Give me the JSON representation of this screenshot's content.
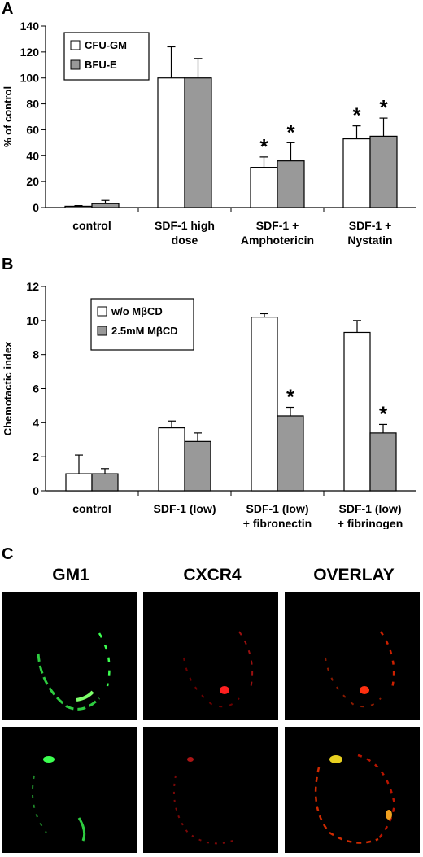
{
  "panels": {
    "a_letter": "A",
    "b_letter": "B",
    "c_letter": "C"
  },
  "chart_data": [
    {
      "type": "bar",
      "panel": "A",
      "ylabel": "% of control",
      "ylim": [
        0,
        140
      ],
      "yticks": [
        0,
        20,
        40,
        60,
        80,
        100,
        120,
        140
      ],
      "categories": [
        [
          "control"
        ],
        [
          "SDF-1 high",
          "dose"
        ],
        [
          "SDF-1 +",
          "Amphotericin"
        ],
        [
          "SDF-1 +",
          "Nystatin"
        ]
      ],
      "series": [
        {
          "name": "CFU-GM",
          "color": "#ffffff",
          "values": [
            1,
            100,
            31,
            53
          ],
          "errors": [
            0.5,
            24,
            8,
            10
          ]
        },
        {
          "name": "BFU-E",
          "color": "#999999",
          "values": [
            3,
            100,
            36,
            55
          ],
          "errors": [
            2.5,
            15,
            14,
            14
          ]
        }
      ],
      "significance": [
        [
          false,
          false,
          true,
          true
        ],
        [
          false,
          false,
          true,
          true
        ]
      ],
      "significance_mark": "*",
      "legend_position": "top-left",
      "grid": false
    },
    {
      "type": "bar",
      "panel": "B",
      "ylabel": "Chemotactic index",
      "ylim": [
        0,
        12
      ],
      "yticks": [
        0,
        2,
        4,
        6,
        8,
        10,
        12
      ],
      "categories": [
        [
          "control"
        ],
        [
          "SDF-1 (low)"
        ],
        [
          "SDF-1 (low)",
          "+ fibronectin"
        ],
        [
          "SDF-1 (low)",
          "+ fibrinogen"
        ]
      ],
      "series": [
        {
          "name": "w/o MβCD",
          "color": "#ffffff",
          "values": [
            1.0,
            3.7,
            10.2,
            9.3
          ],
          "errors": [
            1.1,
            0.4,
            0.2,
            0.7
          ]
        },
        {
          "name": "2.5mM MβCD",
          "color": "#999999",
          "values": [
            1.0,
            2.9,
            4.4,
            3.4
          ],
          "errors": [
            0.3,
            0.5,
            0.5,
            0.5
          ]
        }
      ],
      "significance": [
        [
          false,
          false,
          false,
          false
        ],
        [
          false,
          false,
          true,
          true
        ]
      ],
      "significance_mark": "*",
      "legend_position": "top-left",
      "grid": false
    }
  ],
  "micrographs": {
    "headers": [
      "GM1",
      "CXCR4",
      "OVERLAY"
    ]
  }
}
